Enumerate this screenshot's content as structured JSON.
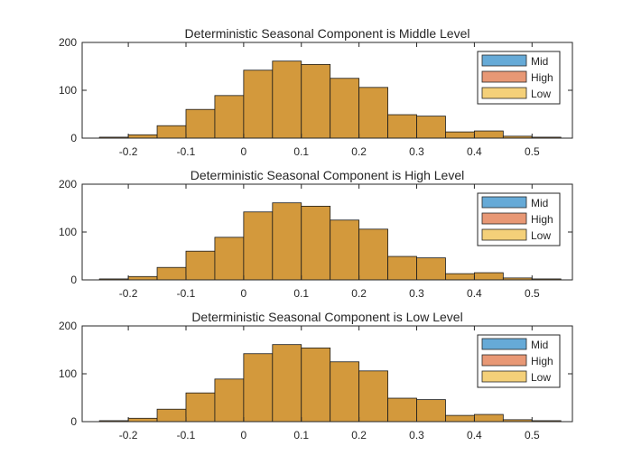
{
  "chart_data": [
    {
      "type": "bar",
      "title": "Deterministic Seasonal Component is Middle Level",
      "xlim": [
        -0.28,
        0.57
      ],
      "ylim": [
        0,
        200
      ],
      "xticks": [
        -0.2,
        -0.1,
        0,
        0.1,
        0.2,
        0.3,
        0.4,
        0.5
      ],
      "xtick_labels": [
        "-0.2",
        "-0.1",
        "0",
        "0.1",
        "0.2",
        "0.3",
        "0.4",
        "0.5"
      ],
      "yticks": [
        0,
        100,
        200
      ],
      "ytick_labels": [
        "0",
        "100",
        "200"
      ],
      "bin_edges": [
        -0.25,
        -0.2,
        -0.15,
        -0.1,
        -0.05,
        0,
        0.05,
        0.1,
        0.15,
        0.2,
        0.25,
        0.3,
        0.35,
        0.4,
        0.45,
        0.5,
        0.55
      ],
      "series": [
        {
          "name": "Mid",
          "color": "#0072BD",
          "values": [
            2,
            7,
            26,
            60,
            89,
            142,
            161,
            154,
            125,
            106,
            49,
            46,
            13,
            15,
            4,
            2
          ]
        },
        {
          "name": "High",
          "color": "#D95319",
          "values": [
            2,
            7,
            26,
            60,
            89,
            142,
            161,
            154,
            125,
            106,
            49,
            46,
            13,
            15,
            4,
            2
          ]
        },
        {
          "name": "Low",
          "color": "#EDB120",
          "values": [
            2,
            7,
            26,
            60,
            89,
            142,
            161,
            154,
            125,
            106,
            49,
            46,
            13,
            15,
            4,
            2
          ]
        }
      ],
      "legend": "top-right"
    },
    {
      "type": "bar",
      "title": "Deterministic Seasonal Component is High Level",
      "xlim": [
        -0.28,
        0.57
      ],
      "ylim": [
        0,
        200
      ],
      "xticks": [
        -0.2,
        -0.1,
        0,
        0.1,
        0.2,
        0.3,
        0.4,
        0.5
      ],
      "xtick_labels": [
        "-0.2",
        "-0.1",
        "0",
        "0.1",
        "0.2",
        "0.3",
        "0.4",
        "0.5"
      ],
      "yticks": [
        0,
        100,
        200
      ],
      "ytick_labels": [
        "0",
        "100",
        "200"
      ],
      "bin_edges": [
        -0.25,
        -0.2,
        -0.15,
        -0.1,
        -0.05,
        0,
        0.05,
        0.1,
        0.15,
        0.2,
        0.25,
        0.3,
        0.35,
        0.4,
        0.45,
        0.5,
        0.55
      ],
      "series": [
        {
          "name": "Mid",
          "color": "#0072BD",
          "values": [
            2,
            7,
            26,
            60,
            89,
            142,
            161,
            154,
            125,
            106,
            49,
            46,
            13,
            15,
            4,
            2
          ]
        },
        {
          "name": "High",
          "color": "#D95319",
          "values": [
            2,
            7,
            26,
            60,
            89,
            142,
            161,
            154,
            125,
            106,
            49,
            46,
            13,
            15,
            4,
            2
          ]
        },
        {
          "name": "Low",
          "color": "#EDB120",
          "values": [
            2,
            7,
            26,
            60,
            89,
            142,
            161,
            154,
            125,
            106,
            49,
            46,
            13,
            15,
            4,
            2
          ]
        }
      ],
      "legend": "top-right"
    },
    {
      "type": "bar",
      "title": "Deterministic Seasonal Component is Low Level",
      "xlim": [
        -0.28,
        0.57
      ],
      "ylim": [
        0,
        200
      ],
      "xticks": [
        -0.2,
        -0.1,
        0,
        0.1,
        0.2,
        0.3,
        0.4,
        0.5
      ],
      "xtick_labels": [
        "-0.2",
        "-0.1",
        "0",
        "0.1",
        "0.2",
        "0.3",
        "0.4",
        "0.5"
      ],
      "yticks": [
        0,
        100,
        200
      ],
      "ytick_labels": [
        "0",
        "100",
        "200"
      ],
      "bin_edges": [
        -0.25,
        -0.2,
        -0.15,
        -0.1,
        -0.05,
        0,
        0.05,
        0.1,
        0.15,
        0.2,
        0.25,
        0.3,
        0.35,
        0.4,
        0.45,
        0.5,
        0.55
      ],
      "series": [
        {
          "name": "Mid",
          "color": "#0072BD",
          "values": [
            2,
            7,
            26,
            60,
            89,
            142,
            161,
            154,
            125,
            106,
            49,
            46,
            13,
            15,
            4,
            2
          ]
        },
        {
          "name": "High",
          "color": "#D95319",
          "values": [
            2,
            7,
            26,
            60,
            89,
            142,
            161,
            154,
            125,
            106,
            49,
            46,
            13,
            15,
            4,
            2
          ]
        },
        {
          "name": "Low",
          "color": "#EDB120",
          "values": [
            2,
            7,
            26,
            60,
            89,
            142,
            161,
            154,
            125,
            106,
            49,
            46,
            13,
            15,
            4,
            2
          ]
        }
      ],
      "legend": "top-right"
    }
  ]
}
